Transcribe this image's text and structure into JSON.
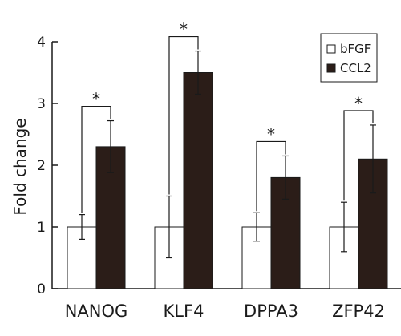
{
  "chart_data": {
    "type": "bar",
    "title": "",
    "xlabel": "",
    "ylabel": "Fold change",
    "ylim": [
      0,
      4
    ],
    "yticks": [
      "0",
      "1",
      "2",
      "3",
      "4"
    ],
    "categories": [
      "NANOG",
      "KLF4",
      "DPPA3",
      "ZFP42"
    ],
    "series": [
      {
        "name": "bFGF",
        "values": [
          1.0,
          1.0,
          1.0,
          1.0
        ],
        "errors": [
          0.2,
          0.5,
          0.23,
          0.4
        ]
      },
      {
        "name": "CCL2",
        "values": [
          2.3,
          3.5,
          1.8,
          2.1
        ],
        "errors": [
          0.42,
          0.35,
          0.35,
          0.55
        ]
      }
    ],
    "significance": [
      "*",
      "*",
      "*",
      "*"
    ],
    "legend_position": "top-right",
    "grid": false,
    "colors": {
      "bFGF": "#ffffff",
      "CCL2": "#2b1d18",
      "axis": "#1a1a1a"
    }
  }
}
